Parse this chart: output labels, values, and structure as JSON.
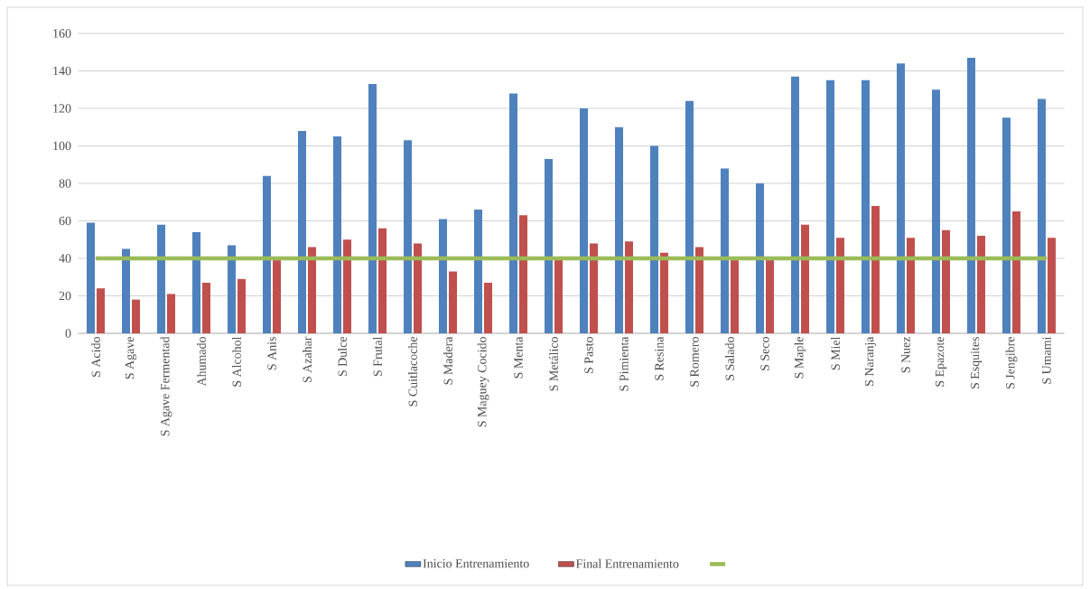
{
  "chart_data": {
    "type": "bar",
    "categories": [
      "S Acido",
      "S Agave",
      "S Agave Fermentad",
      "Ahumado",
      "S Alcohol",
      "S Anis",
      "S Azahar",
      "S Dulce",
      "S Frutal",
      "S Cuitlacoche",
      "S Madera",
      "S Maguey Cocido",
      "S Menta",
      "S Metálico",
      "S Pasto",
      "S Pimienta",
      "S Resina",
      "S Romero",
      "S Salado",
      "S Seco",
      "S Maple",
      "S Miel",
      "S Naranja",
      "S Nuez",
      "S Epazote",
      "S Esquites",
      "S Jengibre",
      "S Umami"
    ],
    "series": [
      {
        "name": "Inicio Entrenamiento",
        "color": "#4f81bd",
        "values": [
          59,
          45,
          58,
          54,
          47,
          84,
          108,
          105,
          133,
          103,
          61,
          66,
          128,
          93,
          120,
          110,
          100,
          124,
          88,
          80,
          137,
          135,
          135,
          144,
          130,
          147,
          115,
          125
        ]
      },
      {
        "name": "Final Entrenamiento",
        "color": "#c0504d",
        "values": [
          24,
          18,
          21,
          27,
          29,
          39,
          46,
          50,
          56,
          48,
          33,
          27,
          63,
          40,
          48,
          49,
          43,
          46,
          39,
          39,
          58,
          51,
          68,
          51,
          55,
          52,
          65,
          51
        ]
      },
      {
        "type": "line",
        "color": "#9bbb59",
        "values": [
          40,
          40,
          40,
          40,
          40,
          40,
          40,
          40,
          40,
          40,
          40,
          40,
          40,
          40,
          40,
          40,
          40,
          40,
          40,
          40,
          40,
          40,
          40,
          40,
          40,
          40,
          40,
          40
        ]
      }
    ],
    "ylim": [
      0,
      160
    ],
    "yticks": [
      0,
      20,
      40,
      60,
      80,
      100,
      120,
      140,
      160
    ],
    "grid": "y",
    "legend": "bottom"
  }
}
